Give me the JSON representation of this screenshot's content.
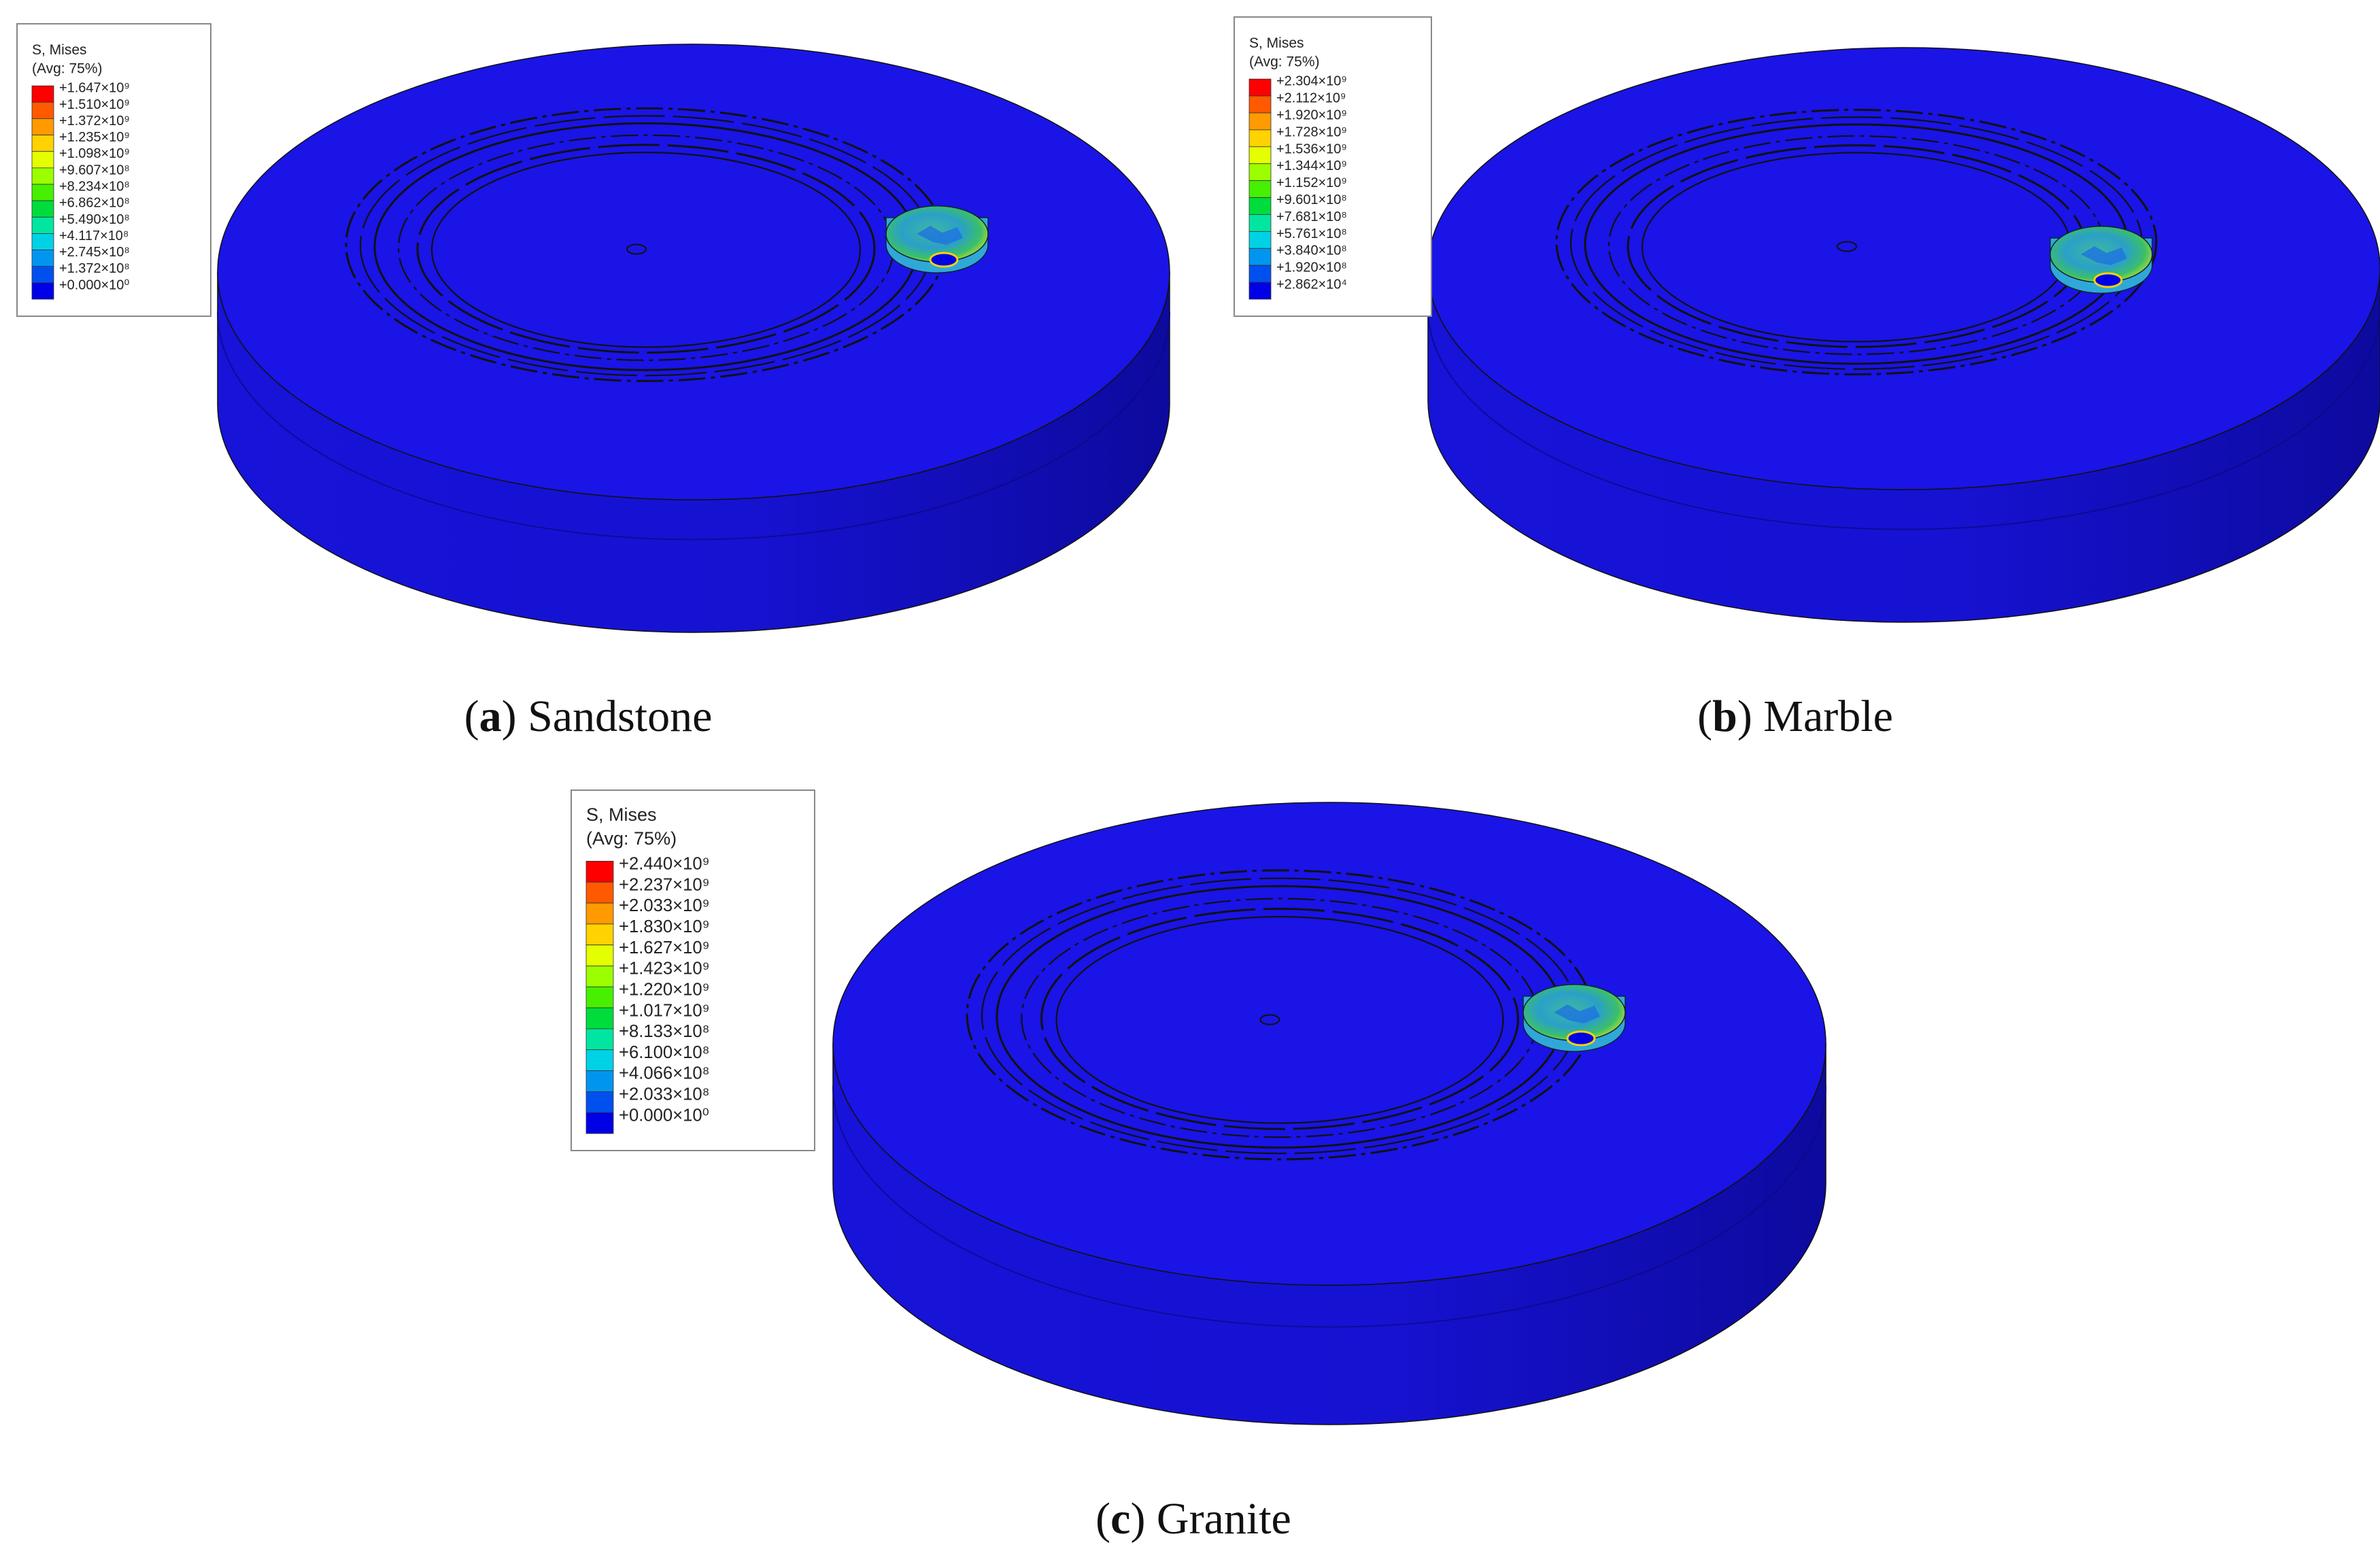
{
  "colors": {
    "disc_top": "#1a14e6",
    "disc_side": "#1410cc",
    "disc_side_dark": "#0e0aa8",
    "contour_line": "#111111"
  },
  "panels": [
    {
      "id": "a",
      "letter": "a",
      "material": "Sandstone",
      "legend": {
        "title": "S, Mises",
        "subtitle": "(Avg: 75%)",
        "values": [
          "+1.647×10⁹",
          "+1.510×10⁹",
          "+1.372×10⁹",
          "+1.235×10⁹",
          "+1.098×10⁹",
          "+9.607×10⁸",
          "+8.234×10⁸",
          "+6.862×10⁸",
          "+5.490×10⁸",
          "+4.117×10⁸",
          "+2.745×10⁸",
          "+1.372×10⁸",
          "+0.000×10⁰"
        ]
      }
    },
    {
      "id": "b",
      "letter": "b",
      "material": "Marble",
      "legend": {
        "title": "S, Mises",
        "subtitle": "(Avg: 75%)",
        "values": [
          "+2.304×10⁹",
          "+2.112×10⁹",
          "+1.920×10⁹",
          "+1.728×10⁹",
          "+1.536×10⁹",
          "+1.344×10⁹",
          "+1.152×10⁹",
          "+9.601×10⁸",
          "+7.681×10⁸",
          "+5.761×10⁸",
          "+3.840×10⁸",
          "+1.920×10⁸",
          "+2.862×10⁴"
        ]
      }
    },
    {
      "id": "c",
      "letter": "c",
      "material": "Granite",
      "legend": {
        "title": "S, Mises",
        "subtitle": "(Avg: 75%)",
        "values": [
          "+2.440×10⁹",
          "+2.237×10⁹",
          "+2.033×10⁹",
          "+1.830×10⁹",
          "+1.627×10⁹",
          "+1.423×10⁹",
          "+1.220×10⁹",
          "+1.017×10⁹",
          "+8.133×10⁸",
          "+6.100×10⁸",
          "+4.066×10⁸",
          "+2.033×10⁸",
          "+0.000×10⁰"
        ]
      }
    }
  ],
  "legend_colors": [
    "#ff0000",
    "#ff5a00",
    "#ff9a00",
    "#ffd200",
    "#e4ff00",
    "#9cff00",
    "#46f000",
    "#00dc3c",
    "#00e6a0",
    "#00d2e6",
    "#0096f0",
    "#0050f0",
    "#0000e6"
  ]
}
